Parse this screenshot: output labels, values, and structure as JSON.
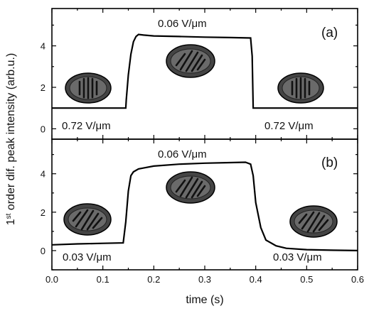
{
  "figure": {
    "ylabel_main": "1",
    "ylabel_sup": "st",
    "ylabel_rest": " order dif. peak intensity (arb.u.)",
    "xlabel": "time  (s)"
  },
  "chart_data": [
    {
      "type": "line",
      "panel_label": "(a)",
      "xlim": [
        0.0,
        0.6
      ],
      "ylim": [
        -0.5,
        5.8
      ],
      "x_ticks": [
        "0.0",
        "0.1",
        "0.2",
        "0.3",
        "0.4",
        "0.5",
        "0.6"
      ],
      "y_ticks": [
        "0",
        "2",
        "4"
      ],
      "y_tick_values": [
        0,
        2,
        4
      ],
      "grid": false,
      "annotations": [
        "0.72 V/μm",
        "0.06 V/μm",
        "0.72 V/μm"
      ],
      "series": [
        {
          "x": [
            0.0,
            0.05,
            0.1,
            0.14,
            0.145,
            0.146,
            0.15,
            0.155,
            0.16,
            0.165,
            0.17,
            0.18,
            0.2,
            0.25,
            0.3,
            0.35,
            0.39,
            0.393,
            0.395,
            0.4,
            0.45,
            0.5,
            0.55,
            0.6
          ],
          "y": [
            1.0,
            1.0,
            1.0,
            1.0,
            1.0,
            1.4,
            2.6,
            3.6,
            4.2,
            4.45,
            4.55,
            4.52,
            4.48,
            4.45,
            4.42,
            4.4,
            4.38,
            3.5,
            1.0,
            1.0,
            1.0,
            1.0,
            1.0,
            1.0
          ]
        }
      ],
      "insets": [
        "vertical-stripes-domain-icon",
        "diagonal-stripes-domain-icon",
        "vertical-stripes-domain-icon"
      ]
    },
    {
      "type": "line",
      "panel_label": "(b)",
      "xlim": [
        0.0,
        0.6
      ],
      "ylim": [
        -1.0,
        5.8
      ],
      "x_ticks": [
        "0.0",
        "0.1",
        "0.2",
        "0.3",
        "0.4",
        "0.5",
        "0.6"
      ],
      "y_ticks": [
        "0",
        "2",
        "4"
      ],
      "y_tick_values": [
        0,
        2,
        4
      ],
      "grid": false,
      "annotations": [
        "0.03 V/μm",
        "0.06 V/μm",
        "0.03 V/μm"
      ],
      "series": [
        {
          "x": [
            0.0,
            0.05,
            0.1,
            0.14,
            0.145,
            0.15,
            0.155,
            0.16,
            0.17,
            0.18,
            0.2,
            0.25,
            0.3,
            0.35,
            0.38,
            0.39,
            0.395,
            0.4,
            0.41,
            0.42,
            0.44,
            0.46,
            0.5,
            0.55,
            0.6
          ],
          "y": [
            0.3,
            0.35,
            0.38,
            0.4,
            1.5,
            3.1,
            3.9,
            4.1,
            4.25,
            4.3,
            4.4,
            4.5,
            4.55,
            4.58,
            4.6,
            4.5,
            3.9,
            2.5,
            1.2,
            0.55,
            0.25,
            0.12,
            0.05,
            0.02,
            0.0
          ]
        }
      ],
      "insets": [
        "diagonal-stripes-domain-icon",
        "diagonal-stripes-domain-icon",
        "diagonal-stripes-domain-icon"
      ]
    }
  ]
}
